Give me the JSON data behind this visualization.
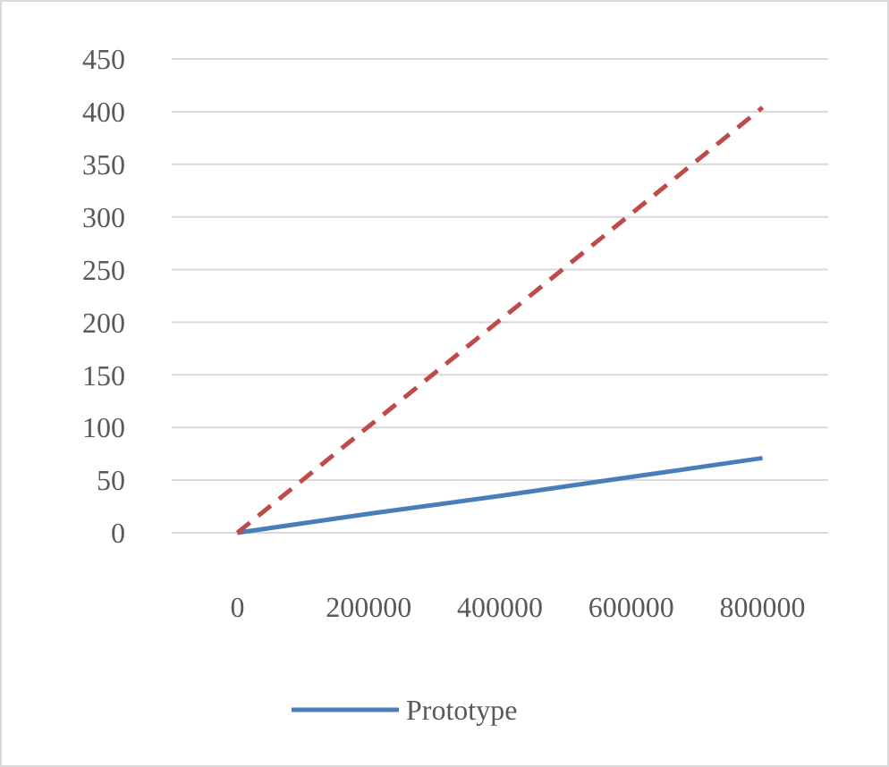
{
  "chart_data": {
    "type": "line",
    "categories": [
      "0",
      "200000",
      "400000",
      "600000",
      "800000"
    ],
    "series": [
      {
        "name": "Prototype",
        "color": "#4a7ebb",
        "values": [
          0,
          18,
          35,
          53,
          71
        ],
        "line_style": "solid"
      },
      {
        "color": "#be4b48",
        "values": [
          0,
          101,
          202,
          303,
          404
        ],
        "line_style": "dashed"
      }
    ],
    "ylim": [
      0,
      450
    ],
    "yticks": [
      0,
      50,
      100,
      150,
      200,
      250,
      300,
      350,
      400,
      450
    ],
    "grid": "y",
    "legend": "bottom",
    "marker": "none"
  }
}
